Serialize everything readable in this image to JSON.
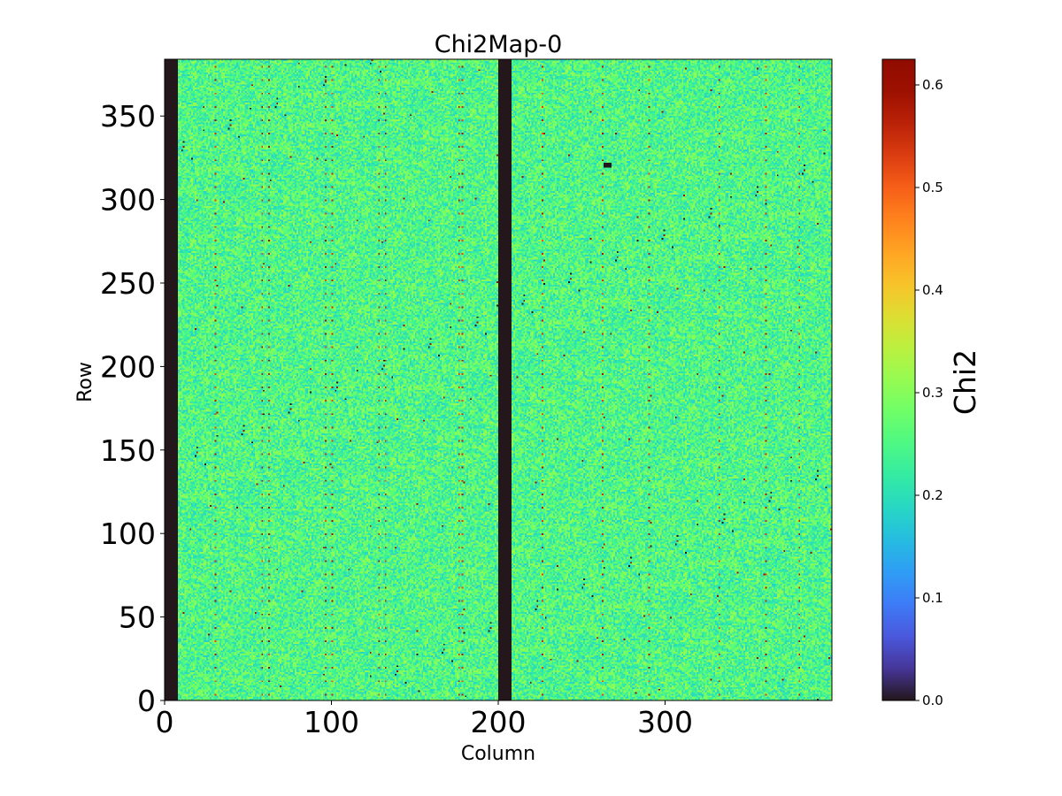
{
  "chart_data": {
    "type": "heatmap",
    "title": "Chi2Map-0",
    "xlabel": "Column",
    "ylabel": "Row",
    "xlim": [
      0,
      400
    ],
    "ylim": [
      0,
      384
    ],
    "x_ticks": [
      0,
      100,
      200,
      300
    ],
    "y_ticks": [
      0,
      50,
      100,
      150,
      200,
      250,
      300,
      350
    ],
    "colorbar": {
      "label": "Chi2",
      "range": [
        0.0,
        0.625
      ],
      "ticks": [
        "0.0",
        "0.1",
        "0.2",
        "0.3",
        "0.4",
        "0.5",
        "0.6"
      ],
      "colormap": "turbo"
    },
    "typical_value_range": [
      0.18,
      0.32
    ],
    "hot_pixel_value_max": 0.6,
    "zero_regions": [
      {
        "description": "dead column band",
        "col_range": [
          0,
          8
        ],
        "row_range": [
          0,
          384
        ],
        "value": 0.0
      },
      {
        "description": "dead column band",
        "col_range": [
          200,
          208
        ],
        "row_range": [
          0,
          384
        ],
        "value": 0.0
      },
      {
        "description": "dead pixel cluster",
        "col_range": [
          263,
          268
        ],
        "row_range": [
          319,
          322
        ],
        "value": 0.0
      }
    ],
    "periodic_hot_columns": [
      30,
      58,
      62,
      96,
      100,
      128,
      132,
      176,
      178,
      226,
      262,
      290,
      332,
      360,
      380
    ],
    "periodic_hot_row_spacing": 8
  }
}
